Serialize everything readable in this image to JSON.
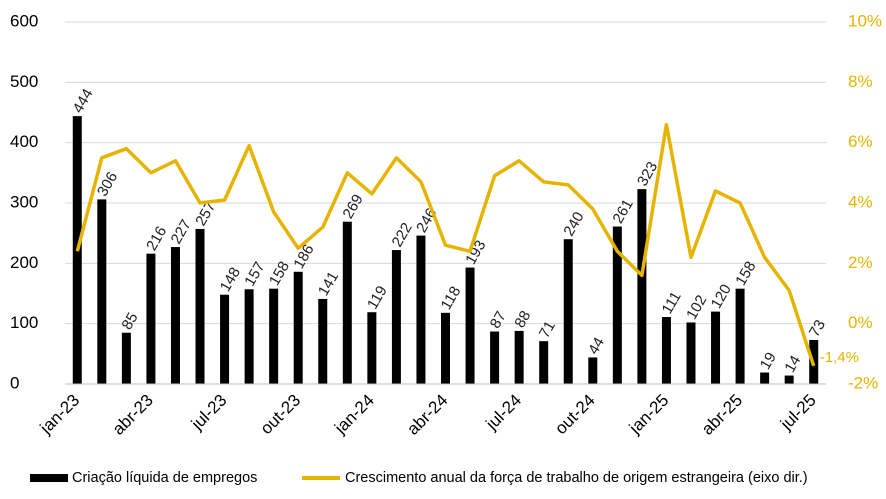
{
  "chart_data": {
    "type": "bar-line",
    "categories": [
      "jan-23",
      null,
      null,
      "abr-23",
      null,
      null,
      "jul-23",
      null,
      null,
      "out-23",
      null,
      null,
      "jan-24",
      null,
      null,
      "abr-24",
      null,
      null,
      "jul-24",
      null,
      null,
      "out-24",
      null,
      null,
      "jan-25",
      null,
      null,
      "abr-25",
      null,
      null,
      "jul-25"
    ],
    "series": [
      {
        "name": "Criação líquida de empregos",
        "type": "bar",
        "color": "#000000",
        "values": [
          444,
          306,
          85,
          216,
          227,
          257,
          148,
          157,
          158,
          186,
          141,
          269,
          119,
          222,
          246,
          118,
          193,
          87,
          88,
          71,
          240,
          44,
          261,
          323,
          111,
          102,
          120,
          158,
          19,
          14,
          73
        ],
        "data_labels": true
      },
      {
        "name": "Crescimento anual da força de trabalho de origem estrangeira (eixo dir.)",
        "type": "line",
        "color": "#e6b400",
        "axis": "y2",
        "values": [
          2.4,
          5.5,
          5.8,
          5.0,
          5.4,
          4.0,
          4.1,
          5.9,
          3.7,
          2.5,
          3.2,
          5.0,
          4.3,
          5.5,
          4.7,
          2.6,
          2.4,
          4.9,
          5.4,
          4.7,
          4.6,
          3.8,
          2.4,
          1.6,
          6.6,
          2.2,
          4.4,
          4.0,
          2.2,
          1.1,
          -1.4
        ],
        "value_labels": [
          null,
          null,
          null,
          null,
          null,
          null,
          null,
          null,
          null,
          null,
          null,
          null,
          null,
          null,
          null,
          null,
          null,
          null,
          null,
          null,
          null,
          null,
          null,
          null,
          null,
          null,
          null,
          null,
          null,
          null,
          "-1,4%"
        ]
      }
    ],
    "ylim": [
      0,
      600
    ],
    "yticks": [
      0,
      100,
      200,
      300,
      400,
      500,
      600
    ],
    "y2lim": [
      -2,
      10
    ],
    "y2ticks": [
      {
        "value": -2,
        "label": "-2%"
      },
      {
        "value": 0,
        "label": "0%"
      },
      {
        "value": 2,
        "label": "2%"
      },
      {
        "value": 4,
        "label": "4%"
      },
      {
        "value": 6,
        "label": "6%"
      },
      {
        "value": 8,
        "label": "8%"
      },
      {
        "value": 10,
        "label": "10%"
      }
    ],
    "grid": true,
    "legend": "bottom"
  }
}
